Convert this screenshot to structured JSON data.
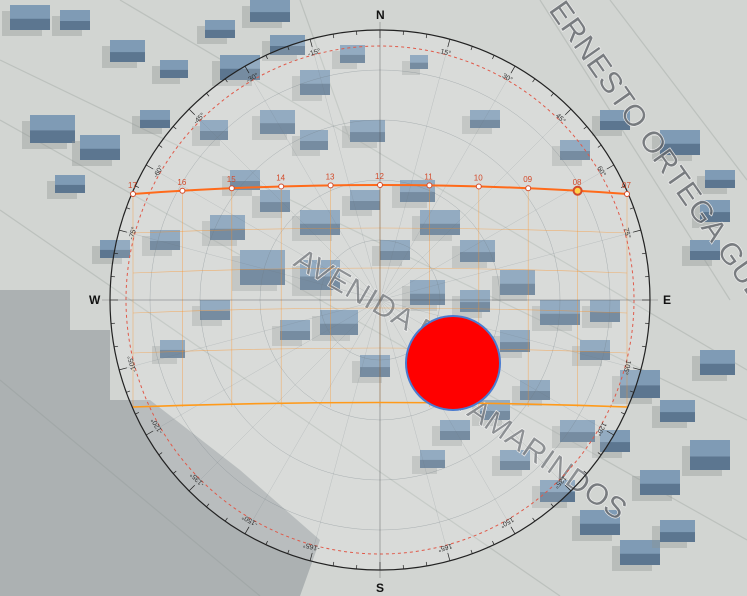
{
  "map": {
    "streets": [
      {
        "id": "ernesto",
        "label": "ERNESTO ORTEGA GUERRERO"
      },
      {
        "id": "avenida",
        "label": "AVENIDA R"
      },
      {
        "id": "tamarindos",
        "label": "TAMARINDOS"
      }
    ]
  },
  "compass": {
    "north": "N",
    "south": "S",
    "east": "E",
    "west": "W",
    "degree_labels": [
      "15°",
      "30°",
      "45°",
      "60°",
      "75°",
      "105°",
      "120°",
      "135°",
      "150°",
      "165°",
      "-15°",
      "-30°",
      "-45°",
      "-60°",
      "-75°",
      "-105°",
      "-120°",
      "-135°",
      "-150°",
      "-165°"
    ]
  },
  "sun_path": {
    "hour_labels": [
      "17",
      "16",
      "15",
      "14",
      "13",
      "12",
      "11",
      "10",
      "09",
      "08",
      "07"
    ],
    "current_hour": "08"
  },
  "marker": {
    "color": "#ff0000",
    "outline_color": "#4a7bd0"
  },
  "colors": {
    "ring": "#222222",
    "sun_path": "#ff8c1a",
    "dashed_ring": "#e05a4a",
    "building_roof": "#7f9bb5",
    "building_side": "#5c7690"
  }
}
